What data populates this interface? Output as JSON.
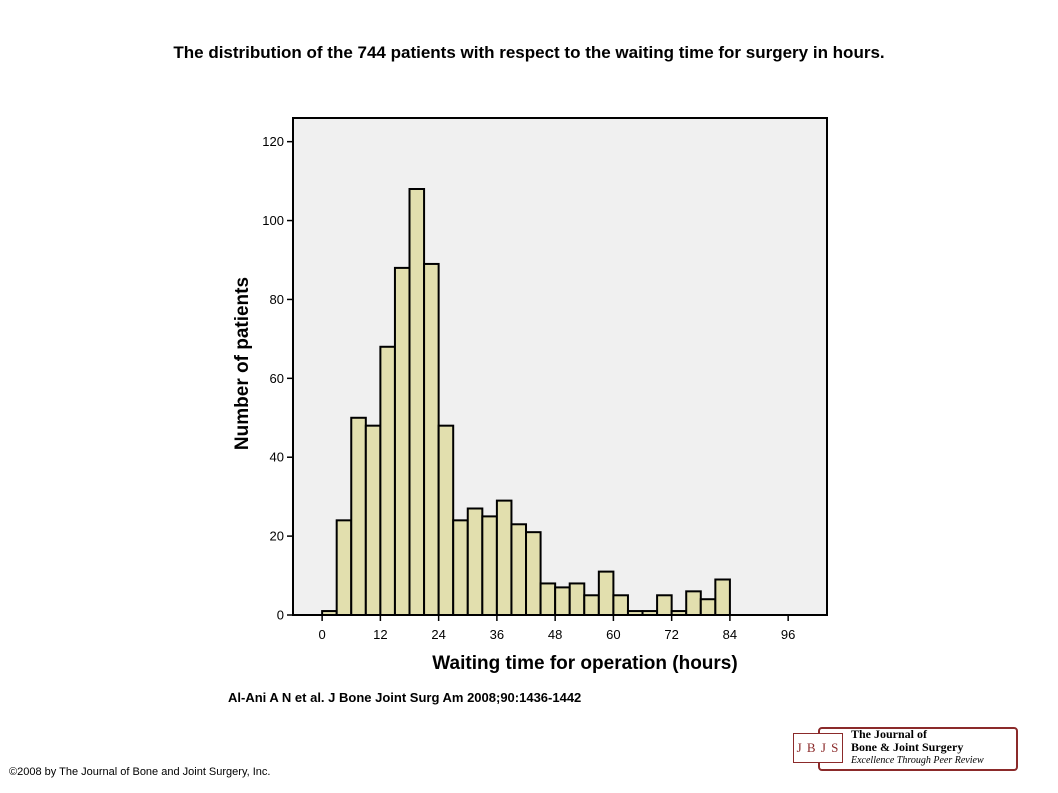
{
  "slide": {
    "title": "The distribution of the 744 patients with respect to the waiting time for surgery in hours.",
    "citation": "Al-Ani A N et al. J Bone Joint Surg Am 2008;90:1436-1442",
    "copyright": "©2008 by The Journal of Bone and Joint Surgery, Inc."
  },
  "logo": {
    "abbr": "J B J S",
    "line1": "The Journal of",
    "line2": "Bone & Joint Surgery",
    "tagline": "Excellence Through Peer Review",
    "color": "#8b2a2a"
  },
  "chart_data": {
    "type": "bar",
    "title": "",
    "xlabel": "Waiting time for operation (hours)",
    "ylabel": "Number of patients",
    "bin_width": 3,
    "bin_starts": [
      0,
      3,
      6,
      9,
      12,
      15,
      18,
      21,
      24,
      27,
      30,
      33,
      36,
      39,
      42,
      45,
      48,
      51,
      54,
      57,
      60,
      63,
      66,
      69,
      72,
      75,
      78,
      81,
      84,
      87,
      90,
      93,
      96
    ],
    "values": [
      1,
      24,
      50,
      48,
      68,
      88,
      108,
      89,
      48,
      24,
      27,
      25,
      29,
      23,
      21,
      8,
      7,
      8,
      5,
      11,
      5,
      1,
      1,
      5,
      1,
      6,
      4,
      9,
      0,
      0,
      0,
      0,
      0
    ],
    "xticks": [
      0,
      12,
      24,
      36,
      48,
      60,
      72,
      84,
      96
    ],
    "yticks": [
      0,
      20,
      40,
      60,
      80,
      100,
      120
    ],
    "xlim": [
      -6,
      104
    ],
    "ylim": [
      0,
      126
    ],
    "grid": false,
    "bar_color": "#e2dfae",
    "bar_edge_color": "#000000",
    "plot_background": "#f0f0f0"
  }
}
